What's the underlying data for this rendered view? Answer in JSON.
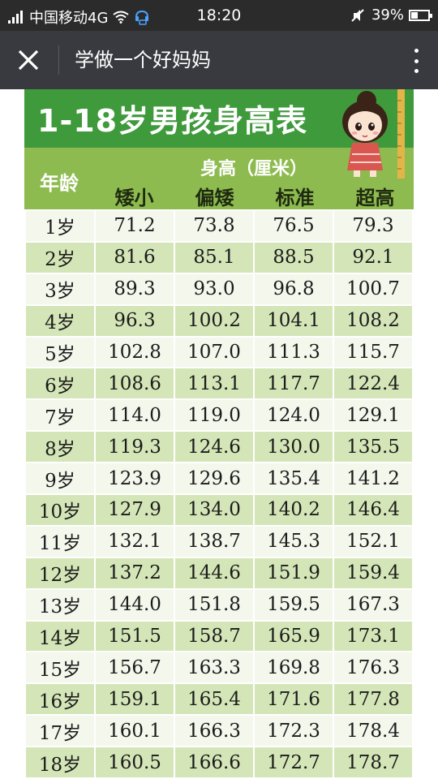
{
  "status_bar": {
    "carrier": "中国移动4G",
    "time": "18:20",
    "battery": "39%",
    "battery_level": 0.39
  },
  "title_bar": {
    "title": "学做一个好妈妈"
  },
  "poster": {
    "title": "1-18岁男孩身高表",
    "header": {
      "age": "年龄",
      "group": "身高（厘米）",
      "columns": [
        "矮小",
        "偏矮",
        "标准",
        "超高"
      ]
    },
    "rows": [
      {
        "age": "1岁",
        "values": [
          "71.2",
          "73.8",
          "76.5",
          "79.3"
        ]
      },
      {
        "age": "2岁",
        "values": [
          "81.6",
          "85.1",
          "88.5",
          "92.1"
        ]
      },
      {
        "age": "3岁",
        "values": [
          "89.3",
          "93.0",
          "96.8",
          "100.7"
        ]
      },
      {
        "age": "4岁",
        "values": [
          "96.3",
          "100.2",
          "104.1",
          "108.2"
        ]
      },
      {
        "age": "5岁",
        "values": [
          "102.8",
          "107.0",
          "111.3",
          "115.7"
        ]
      },
      {
        "age": "6岁",
        "values": [
          "108.6",
          "113.1",
          "117.7",
          "122.4"
        ]
      },
      {
        "age": "7岁",
        "values": [
          "114.0",
          "119.0",
          "124.0",
          "129.1"
        ]
      },
      {
        "age": "8岁",
        "values": [
          "119.3",
          "124.6",
          "130.0",
          "135.5"
        ]
      },
      {
        "age": "9岁",
        "values": [
          "123.9",
          "129.6",
          "135.4",
          "141.2"
        ]
      },
      {
        "age": "10岁",
        "values": [
          "127.9",
          "134.0",
          "140.2",
          "146.4"
        ]
      },
      {
        "age": "11岁",
        "values": [
          "132.1",
          "138.7",
          "145.3",
          "152.1"
        ]
      },
      {
        "age": "12岁",
        "values": [
          "137.2",
          "144.6",
          "151.9",
          "159.4"
        ]
      },
      {
        "age": "13岁",
        "values": [
          "144.0",
          "151.8",
          "159.5",
          "167.3"
        ]
      },
      {
        "age": "14岁",
        "values": [
          "151.5",
          "158.7",
          "165.9",
          "173.1"
        ]
      },
      {
        "age": "15岁",
        "values": [
          "156.7",
          "163.3",
          "169.8",
          "176.3"
        ]
      },
      {
        "age": "16岁",
        "values": [
          "159.1",
          "165.4",
          "171.6",
          "177.8"
        ]
      },
      {
        "age": "17岁",
        "values": [
          "160.1",
          "166.3",
          "172.3",
          "178.4"
        ]
      },
      {
        "age": "18岁",
        "values": [
          "160.5",
          "166.6",
          "172.7",
          "178.7"
        ]
      }
    ]
  },
  "colors": {
    "banner": "#3f9a3c",
    "header": "#8dbb4f",
    "row_light": "#f3f7ec",
    "row_dark": "#d4e6b7",
    "titlebar": "#393a3f"
  },
  "icons": {
    "close": "close-icon",
    "more": "more-vertical-icon",
    "signal": "signal-icon",
    "wifi": "wifi-icon",
    "mute": "mute-icon",
    "battery": "battery-icon"
  }
}
